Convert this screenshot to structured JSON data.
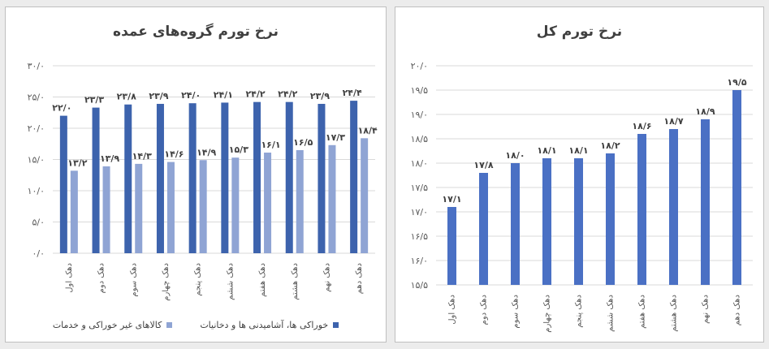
{
  "colors": {
    "dark_series": "#3d63ad",
    "light_series": "#8fa4d4",
    "single_series": "#4a70c4",
    "grid": "#d9d9d9"
  },
  "chart_data": [
    {
      "type": "bar",
      "title": "نرخ تورم گروه‌های عمده",
      "categories": [
        "دهک اول",
        "دهک دوم",
        "دهک سوم",
        "دهک چهارم",
        "دهک پنجم",
        "دهک ششم",
        "دهک هفتم",
        "دهک هشتم",
        "دهک نهم",
        "دهک دهم"
      ],
      "series": [
        {
          "name": "خوراکی ها، آشامیدنی ها و دخانیات",
          "values": [
            22.0,
            23.3,
            23.8,
            23.9,
            24.0,
            24.1,
            24.2,
            24.2,
            23.9,
            24.4
          ],
          "labels": [
            "۲۲/۰",
            "۲۳/۳",
            "۲۳/۸",
            "۲۳/۹",
            "۲۴/۰",
            "۲۴/۱",
            "۲۴/۲",
            "۲۴/۲",
            "۲۳/۹",
            "۲۴/۴"
          ]
        },
        {
          "name": "کالاهای غیر خوراکی و خدمات",
          "values": [
            13.2,
            13.9,
            14.3,
            14.6,
            14.9,
            15.3,
            16.1,
            16.5,
            17.3,
            18.4
          ],
          "labels": [
            "۱۳/۲",
            "۱۳/۹",
            "۱۴/۳",
            "۱۴/۶",
            "۱۴/۹",
            "۱۵/۳",
            "۱۶/۱",
            "۱۶/۵",
            "۱۷/۳",
            "۱۸/۴"
          ]
        }
      ],
      "ylim": [
        0,
        30
      ],
      "yticks": [
        0,
        5,
        10,
        15,
        20,
        25,
        30
      ],
      "ytick_labels": [
        "۰/۰",
        "۵/۰",
        "۱۰/۰",
        "۱۵/۰",
        "۲۰/۰",
        "۲۵/۰",
        "۳۰/۰"
      ],
      "grid": true,
      "legend": "bottom"
    },
    {
      "type": "bar",
      "title": "نرخ تورم کل",
      "categories": [
        "دهک اول",
        "دهک دوم",
        "دهک سوم",
        "دهک چهارم",
        "دهک پنجم",
        "دهک ششم",
        "دهک هفتم",
        "دهک هشتم",
        "دهک نهم",
        "دهک دهم"
      ],
      "values": [
        17.1,
        17.8,
        18.0,
        18.1,
        18.1,
        18.2,
        18.6,
        18.7,
        18.9,
        19.5
      ],
      "labels": [
        "۱۷/۱",
        "۱۷/۸",
        "۱۸/۰",
        "۱۸/۱",
        "۱۸/۱",
        "۱۸/۲",
        "۱۸/۶",
        "۱۸/۷",
        "۱۸/۹",
        "۱۹/۵"
      ],
      "ylim": [
        15.5,
        20
      ],
      "yticks": [
        15.5,
        16,
        16.5,
        17,
        17.5,
        18,
        18.5,
        19,
        19.5,
        20
      ],
      "ytick_labels": [
        "۱۵/۵",
        "۱۶/۰",
        "۱۶/۵",
        "۱۷/۰",
        "۱۷/۵",
        "۱۸/۰",
        "۱۸/۵",
        "۱۹/۰",
        "۱۹/۵",
        "۲۰/۰"
      ],
      "grid": true
    }
  ]
}
